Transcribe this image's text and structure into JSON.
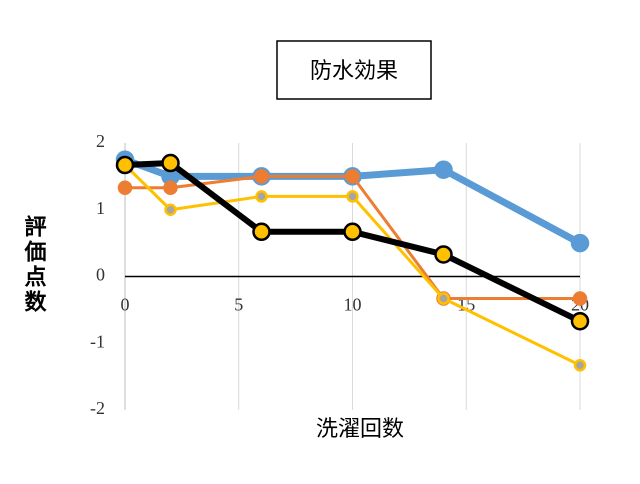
{
  "chart_data": {
    "type": "line",
    "title": "防水効果",
    "x_label": "洗濯回数",
    "y_label": "評価点数",
    "x": [
      0,
      2,
      6,
      10,
      14,
      20
    ],
    "xlim": [
      0,
      20
    ],
    "xticks": [
      0,
      5,
      10,
      15,
      20
    ],
    "ylim": [
      -2,
      2
    ],
    "yticks": [
      -2,
      -1,
      0,
      1,
      2
    ],
    "grid": "x",
    "series": [
      {
        "color": "#5b9bd5",
        "marker_fill": "#5b9bd5",
        "values": [
          1.75,
          1.5,
          1.5,
          1.5,
          1.6,
          0.5
        ]
      },
      {
        "color": "#ed7d31",
        "marker_fill": "#ed7d31",
        "values": [
          1.33,
          1.33,
          1.5,
          1.5,
          -0.33,
          -0.33
        ]
      },
      {
        "color": "#ffc000",
        "marker_fill": "#a5a5a5",
        "values": [
          1.67,
          1.0,
          1.2,
          1.2,
          -0.33,
          -1.33
        ]
      },
      {
        "color": "#000000",
        "marker_fill": "#ffc000",
        "values": [
          1.67,
          1.7,
          0.67,
          0.67,
          0.33,
          -0.67
        ]
      }
    ]
  }
}
